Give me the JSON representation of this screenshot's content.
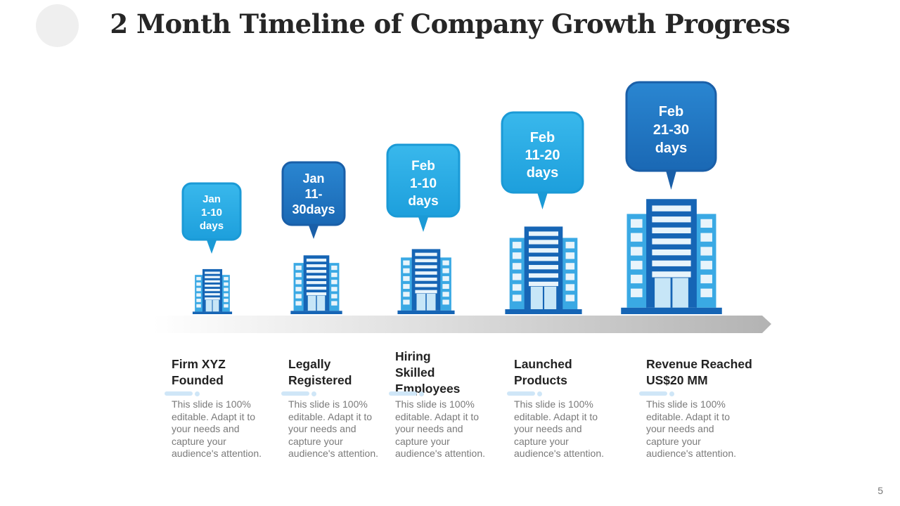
{
  "slide": {
    "title": "2 Month Timeline of Company Growth Progress",
    "page_number": "5"
  },
  "colors": {
    "bubble_light": "#1fa8e2",
    "bubble_dark": "#1a73c2",
    "building_dark": "#1565b4",
    "building_light": "#3fb1e6",
    "arrow": "#b8b8b8"
  },
  "milestones": [
    {
      "bubble_lines": [
        "Jan",
        "1-10",
        "days"
      ],
      "bubble_style": "light",
      "heading_lines": [
        "Firm XYZ",
        "Founded"
      ],
      "description_lines": [
        "This slide is 100%",
        "editable. Adapt it to",
        "your needs and",
        "capture your",
        "audience's attention."
      ]
    },
    {
      "bubble_lines": [
        "Jan",
        "11-",
        "30days"
      ],
      "bubble_style": "dark",
      "heading_lines": [
        "Legally",
        "Registered"
      ],
      "description_lines": [
        "This slide is 100%",
        "editable. Adapt it to",
        "your needs and",
        "capture your",
        "audience's attention."
      ]
    },
    {
      "bubble_lines": [
        "Feb",
        "1-10",
        "days"
      ],
      "bubble_style": "light",
      "heading_lines": [
        "Hiring",
        "Skilled",
        "Employees"
      ],
      "description_lines": [
        "This slide is 100%",
        "editable. Adapt it to",
        "your needs and",
        "capture your",
        "audience's attention."
      ]
    },
    {
      "bubble_lines": [
        "Feb",
        "11-20",
        "days"
      ],
      "bubble_style": "light",
      "heading_lines": [
        "Launched",
        "Products"
      ],
      "description_lines": [
        "This slide is 100%",
        "editable. Adapt it to",
        "your needs and",
        "capture your",
        "audience's attention."
      ]
    },
    {
      "bubble_lines": [
        "Feb",
        "21-30",
        "days"
      ],
      "bubble_style": "dark",
      "heading_lines": [
        "Revenue Reached",
        "US$20 MM"
      ],
      "description_lines": [
        "This slide is 100%",
        "editable. Adapt it to",
        "your needs and",
        "capture your",
        "audience's attention."
      ]
    }
  ]
}
